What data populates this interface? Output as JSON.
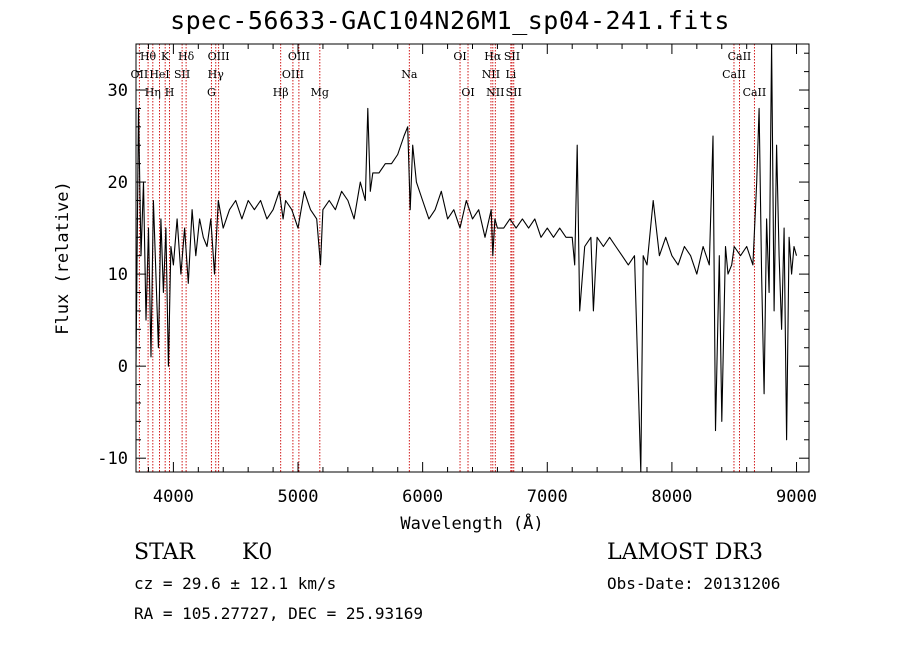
{
  "chart_data": {
    "type": "line",
    "title": "spec-56633-GAC104N26M1_sp04-241.fits",
    "xlabel": "Wavelength (Å)",
    "ylabel": "Flux (relative)",
    "xlim": [
      3700,
      9100
    ],
    "ylim": [
      -11.5,
      35
    ],
    "x_ticks": [
      4000,
      5000,
      6000,
      7000,
      8000,
      9000
    ],
    "y_ticks": [
      -10,
      0,
      10,
      20,
      30
    ],
    "line_color": "#cc0000",
    "series": [
      {
        "name": "flux",
        "x": [
          3700,
          3720,
          3740,
          3760,
          3780,
          3800,
          3820,
          3840,
          3860,
          3880,
          3900,
          3920,
          3940,
          3960,
          3980,
          4000,
          4030,
          4060,
          4090,
          4120,
          4150,
          4180,
          4210,
          4240,
          4270,
          4300,
          4330,
          4360,
          4400,
          4450,
          4500,
          4550,
          4600,
          4650,
          4700,
          4750,
          4800,
          4850,
          4880,
          4900,
          4950,
          5000,
          5050,
          5100,
          5150,
          5180,
          5200,
          5250,
          5300,
          5350,
          5400,
          5450,
          5500,
          5540,
          5560,
          5580,
          5600,
          5650,
          5700,
          5750,
          5800,
          5850,
          5880,
          5900,
          5920,
          5950,
          6000,
          6050,
          6100,
          6150,
          6200,
          6250,
          6300,
          6350,
          6400,
          6450,
          6500,
          6550,
          6563,
          6580,
          6600,
          6650,
          6700,
          6750,
          6800,
          6850,
          6900,
          6950,
          7000,
          7050,
          7100,
          7150,
          7200,
          7220,
          7240,
          7260,
          7300,
          7350,
          7370,
          7400,
          7450,
          7500,
          7550,
          7600,
          7650,
          7700,
          7750,
          7770,
          7800,
          7850,
          7900,
          7950,
          8000,
          8050,
          8100,
          8150,
          8200,
          8250,
          8300,
          8330,
          8350,
          8380,
          8400,
          8430,
          8450,
          8480,
          8500,
          8550,
          8600,
          8650,
          8680,
          8700,
          8720,
          8740,
          8760,
          8780,
          8800,
          8820,
          8840,
          8860,
          8880,
          8900,
          8920,
          8940,
          8960,
          8980,
          9000
        ],
        "y": [
          0,
          28,
          12,
          20,
          5,
          15,
          1,
          18,
          10,
          2,
          16,
          8,
          15,
          0,
          13,
          11,
          16,
          10,
          15,
          9,
          17,
          12,
          16,
          14,
          13,
          16,
          10,
          18,
          15,
          17,
          18,
          16,
          18,
          17,
          18,
          16,
          17,
          19,
          16,
          18,
          17,
          15,
          19,
          17,
          16,
          11,
          17,
          18,
          17,
          19,
          18,
          16,
          20,
          18,
          28,
          19,
          21,
          21,
          22,
          22,
          23,
          25,
          26,
          17,
          24,
          20,
          18,
          16,
          17,
          19,
          16,
          17,
          15,
          18,
          16,
          17,
          14,
          17,
          12,
          16,
          15,
          15,
          16,
          15,
          16,
          15,
          16,
          14,
          15,
          14,
          15,
          14,
          14,
          11,
          24,
          6,
          13,
          14,
          6,
          14,
          13,
          14,
          13,
          12,
          11,
          12,
          -12,
          12,
          11,
          18,
          12,
          14,
          12,
          11,
          13,
          12,
          10,
          13,
          11,
          25,
          -7,
          12,
          -6,
          13,
          10,
          11,
          13,
          12,
          13,
          11,
          20,
          28,
          10,
          -3,
          16,
          8,
          35,
          6,
          24,
          12,
          4,
          15,
          -8,
          14,
          10,
          13,
          12
        ]
      }
    ],
    "spectral_lines": [
      {
        "label": "Hθ",
        "x": 3797,
        "row": 1
      },
      {
        "label": "OII",
        "x": 3727,
        "row": 2
      },
      {
        "label": "Hη",
        "x": 3835,
        "row": 3
      },
      {
        "label": "K",
        "x": 3934,
        "row": 1
      },
      {
        "label": "HeI",
        "x": 3889,
        "row": 2
      },
      {
        "label": "H",
        "x": 3969,
        "row": 3
      },
      {
        "label": "Hδ",
        "x": 4102,
        "row": 1
      },
      {
        "label": "SII",
        "x": 4070,
        "row": 2
      },
      {
        "label": "OIII",
        "x": 4363,
        "row": 1
      },
      {
        "label": "Hγ",
        "x": 4340,
        "row": 2
      },
      {
        "label": "G",
        "x": 4305,
        "row": 3
      },
      {
        "label": "Hβ",
        "x": 4861,
        "row": 3
      },
      {
        "label": "OIII",
        "x": 5007,
        "row": 1
      },
      {
        "label": "OIII",
        "x": 4959,
        "row": 2
      },
      {
        "label": "Mg",
        "x": 5175,
        "row": 3
      },
      {
        "label": "Na",
        "x": 5893,
        "row": 2
      },
      {
        "label": "OI",
        "x": 6300,
        "row": 1
      },
      {
        "label": "OI",
        "x": 6364,
        "row": 3
      },
      {
        "label": "Hα",
        "x": 6563,
        "row": 1
      },
      {
        "label": "NII",
        "x": 6548,
        "row": 2
      },
      {
        "label": "NII",
        "x": 6583,
        "row": 3
      },
      {
        "label": "SII",
        "x": 6717,
        "row": 1
      },
      {
        "label": "Li",
        "x": 6708,
        "row": 2
      },
      {
        "label": "SII",
        "x": 6731,
        "row": 3
      },
      {
        "label": "CaII",
        "x": 8542,
        "row": 1
      },
      {
        "label": "CaII",
        "x": 8498,
        "row": 2
      },
      {
        "label": "CaII",
        "x": 8662,
        "row": 3
      }
    ]
  },
  "info": {
    "class_label": "STAR",
    "subclass": "K0",
    "cz": "cz = 29.6 ± 12.1 km/s",
    "radec": "RA = 105.27727, DEC =  25.93169",
    "survey": "LAMOST DR3",
    "obs_date": "Obs-Date: 20131206"
  }
}
